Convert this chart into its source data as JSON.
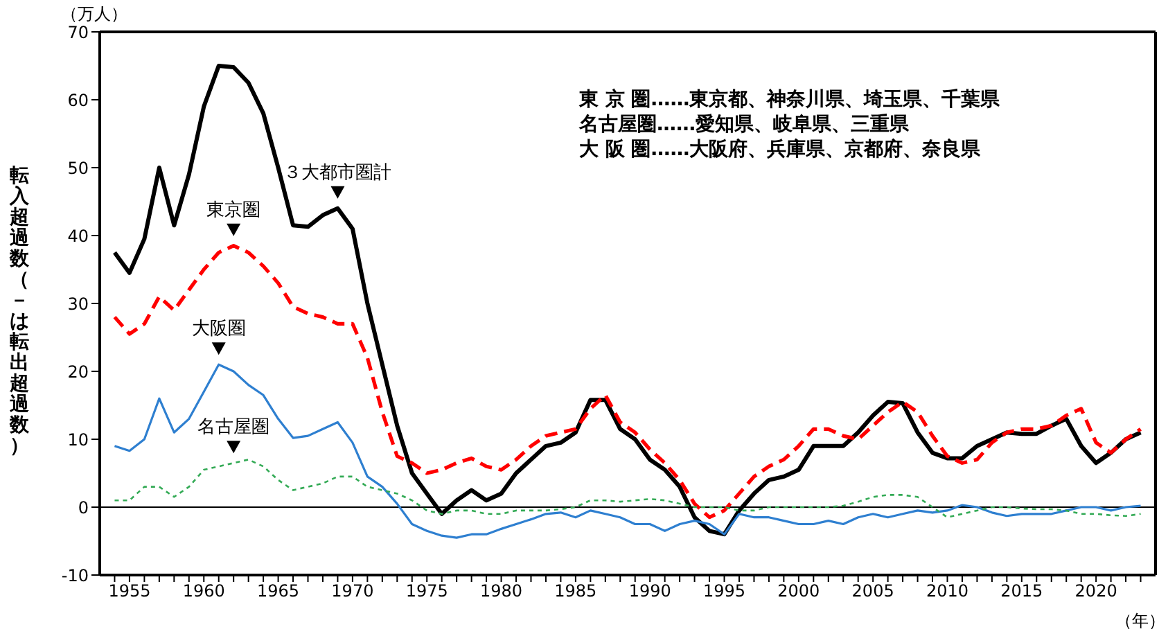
{
  "chart_data": {
    "type": "line",
    "ylabel": "転入超過数（－は転出超過数）",
    "xlabel": "（年）",
    "x": [
      1954,
      1955,
      1956,
      1957,
      1958,
      1959,
      1960,
      1961,
      1962,
      1963,
      1964,
      1965,
      1966,
      1967,
      1968,
      1969,
      1970,
      1971,
      1972,
      1973,
      1974,
      1975,
      1976,
      1977,
      1978,
      1979,
      1980,
      1981,
      1982,
      1983,
      1984,
      1985,
      1986,
      1987,
      1988,
      1989,
      1990,
      1991,
      1992,
      1993,
      1994,
      1995,
      1996,
      1997,
      1998,
      1999,
      2000,
      2001,
      2002,
      2003,
      2004,
      2005,
      2006,
      2007,
      2008,
      2009,
      2010,
      2011,
      2012,
      2013,
      2014,
      2015,
      2016,
      2017,
      2018,
      2019,
      2020,
      2021,
      2022,
      2023
    ],
    "series": [
      {
        "color": "#000000",
        "line_style": "solid",
        "values": [
          37.5,
          34.5,
          39.5,
          50,
          41.5,
          49,
          59,
          65,
          64.8,
          62.5,
          58,
          50,
          41.5,
          41.3,
          43,
          44,
          41,
          30,
          21,
          12,
          5,
          2,
          -1,
          1,
          2.5,
          1,
          2,
          5,
          7,
          9,
          9.5,
          11,
          15.8,
          15.8,
          11.5,
          10,
          7,
          5.5,
          3,
          -1.5,
          -3.5,
          -4,
          -0.5,
          2,
          4,
          4.5,
          5.5,
          9,
          9,
          9,
          11,
          13.5,
          15.5,
          15.3,
          11,
          8,
          7.2,
          7.2,
          9,
          10,
          11,
          10.8,
          10.8,
          12,
          13,
          9,
          6.5,
          8,
          10,
          11
        ]
      },
      {
        "color": "#ff0000",
        "line_style": "dashed",
        "values": [
          28,
          25.5,
          27,
          31,
          29,
          32,
          35,
          37.5,
          38.5,
          37.5,
          35.5,
          33,
          29.5,
          28.5,
          28,
          27,
          27,
          22,
          14,
          7.5,
          6.5,
          5,
          5.5,
          6.5,
          7.2,
          6,
          5.5,
          7,
          9,
          10.5,
          11,
          11.5,
          14.5,
          16.5,
          12.5,
          11,
          8.5,
          6.5,
          4,
          0.5,
          -1.5,
          -0.5,
          2,
          4.5,
          6,
          7,
          9,
          11.5,
          11.5,
          10.5,
          10,
          12,
          14,
          15.5,
          14,
          10.5,
          7.5,
          6.5,
          7,
          9.5,
          11,
          11.5,
          11.5,
          12,
          13.5,
          14.5,
          9.5,
          8,
          10,
          11.5
        ]
      },
      {
        "color": "#2e7fd0",
        "line_style": "solid",
        "values": [
          9,
          8.3,
          10,
          16,
          11,
          13,
          17,
          21,
          20,
          18,
          16.5,
          13,
          10.2,
          10.5,
          11.5,
          12.5,
          9.5,
          4.5,
          3,
          0.5,
          -2.5,
          -3.5,
          -4.2,
          -4.5,
          -4,
          -4,
          -3.2,
          -2.5,
          -1.8,
          -1,
          -0.8,
          -1.5,
          -0.5,
          -1,
          -1.5,
          -2.5,
          -2.5,
          -3.5,
          -2.5,
          -2,
          -2.5,
          -4,
          -1,
          -1.5,
          -1.5,
          -2,
          -2.5,
          -2.5,
          -2,
          -2.5,
          -1.5,
          -1,
          -1.5,
          -1,
          -0.5,
          -0.8,
          -0.5,
          0.3,
          0,
          -0.8,
          -1.3,
          -1,
          -1,
          -1,
          -0.5,
          0,
          0,
          -0.5,
          0,
          0.2
        ]
      },
      {
        "color": "#33aa55",
        "line_style": "dotted",
        "values": [
          1,
          1,
          3,
          3,
          1.5,
          3,
          5.5,
          6,
          6.5,
          7,
          6,
          4,
          2.5,
          3,
          3.5,
          4.5,
          4.5,
          3,
          2.5,
          2,
          1,
          -0.5,
          -1,
          -0.5,
          -0.5,
          -1,
          -1,
          -0.5,
          -0.5,
          -0.5,
          -0.3,
          0,
          1,
          1,
          0.8,
          1,
          1.2,
          1,
          0.5,
          0,
          0,
          0,
          -0.5,
          -0.5,
          0,
          0,
          0,
          0,
          0,
          0.2,
          0.8,
          1.5,
          1.8,
          1.8,
          1.5,
          0,
          -1.5,
          -1,
          -0.5,
          0,
          0,
          -0.2,
          -0.3,
          -0.3,
          -0.5,
          -1,
          -1,
          -1.2,
          -1.3,
          -1
        ]
      }
    ],
    "xlim": [
      1953,
      2024
    ],
    "xticks": [
      {
        "value": 1954,
        "label": null
      },
      1955,
      {
        "value": 1956,
        "label": null
      },
      {
        "value": 1957,
        "label": null
      },
      {
        "value": 1958,
        "label": null
      },
      {
        "value": 1959,
        "label": null
      },
      1960,
      {
        "value": 1961,
        "label": null
      },
      {
        "value": 1962,
        "label": null
      },
      {
        "value": 1963,
        "label": null
      },
      {
        "value": 1964,
        "label": null
      },
      1965,
      {
        "value": 1966,
        "label": null
      },
      {
        "value": 1967,
        "label": null
      },
      {
        "value": 1968,
        "label": null
      },
      {
        "value": 1969,
        "label": null
      },
      1970,
      {
        "value": 1971,
        "label": null
      },
      {
        "value": 1972,
        "label": null
      },
      {
        "value": 1973,
        "label": null
      },
      {
        "value": 1974,
        "label": null
      },
      1975,
      {
        "value": 1976,
        "label": null
      },
      {
        "value": 1977,
        "label": null
      },
      {
        "value": 1978,
        "label": null
      },
      {
        "value": 1979,
        "label": null
      },
      1980,
      {
        "value": 1981,
        "label": null
      },
      {
        "value": 1982,
        "label": null
      },
      {
        "value": 1983,
        "label": null
      },
      {
        "value": 1984,
        "label": null
      },
      1985,
      {
        "value": 1986,
        "label": null
      },
      {
        "value": 1987,
        "label": null
      },
      {
        "value": 1988,
        "label": null
      },
      {
        "value": 1989,
        "label": null
      },
      1990,
      {
        "value": 1991,
        "label": null
      },
      {
        "value": 1992,
        "label": null
      },
      {
        "value": 1993,
        "label": null
      },
      {
        "value": 1994,
        "label": null
      },
      1995,
      {
        "value": 1996,
        "label": null
      },
      {
        "value": 1997,
        "label": null
      },
      {
        "value": 1998,
        "label": null
      },
      {
        "value": 1999,
        "label": null
      },
      2000,
      {
        "value": 2001,
        "label": null
      },
      {
        "value": 2002,
        "label": null
      },
      {
        "value": 2003,
        "label": null
      },
      {
        "value": 2004,
        "label": null
      },
      2005,
      {
        "value": 2006,
        "label": null
      },
      {
        "value": 2007,
        "label": null
      },
      {
        "value": 2008,
        "label": null
      },
      {
        "value": 2009,
        "label": null
      },
      2010,
      {
        "value": 2011,
        "label": null
      },
      {
        "value": 2012,
        "label": null
      },
      {
        "value": 2013,
        "label": null
      },
      {
        "value": 2014,
        "label": null
      },
      2015,
      {
        "value": 2016,
        "label": null
      },
      {
        "value": 2017,
        "label": null
      },
      {
        "value": 2018,
        "label": null
      },
      {
        "value": 2019,
        "label": null
      },
      2020,
      {
        "value": 2021,
        "label": null
      },
      {
        "value": 2022,
        "label": null
      },
      {
        "value": 2023,
        "label": null
      }
    ],
    "ylim": [
      -10,
      70
    ],
    "yticks": [
      -10,
      0,
      10,
      20,
      30,
      40,
      50,
      60,
      70
    ],
    "ref_lines": [
      {
        "axis": "y",
        "value": 0,
        "color": "#000000"
      }
    ],
    "grid": false,
    "legend": false,
    "marker": "none",
    "annotations": [
      "（万人）",
      "東 京 圏……東京都、神奈川県、埼玉県、千葉県",
      "名古屋圏……愛知県、岐阜県、三重県",
      "大 阪 圏……大阪府、兵庫県、京都府、奈良県",
      {
        "text": "３大都市圏計",
        "x": 1969,
        "y": 44
      },
      {
        "text": "東京圏",
        "x": 1962,
        "y": 38.5
      },
      {
        "text": "大阪圏",
        "x": 1961,
        "y": 21
      },
      {
        "text": "名古屋圏",
        "x": 1962,
        "y": 6.5
      }
    ]
  }
}
